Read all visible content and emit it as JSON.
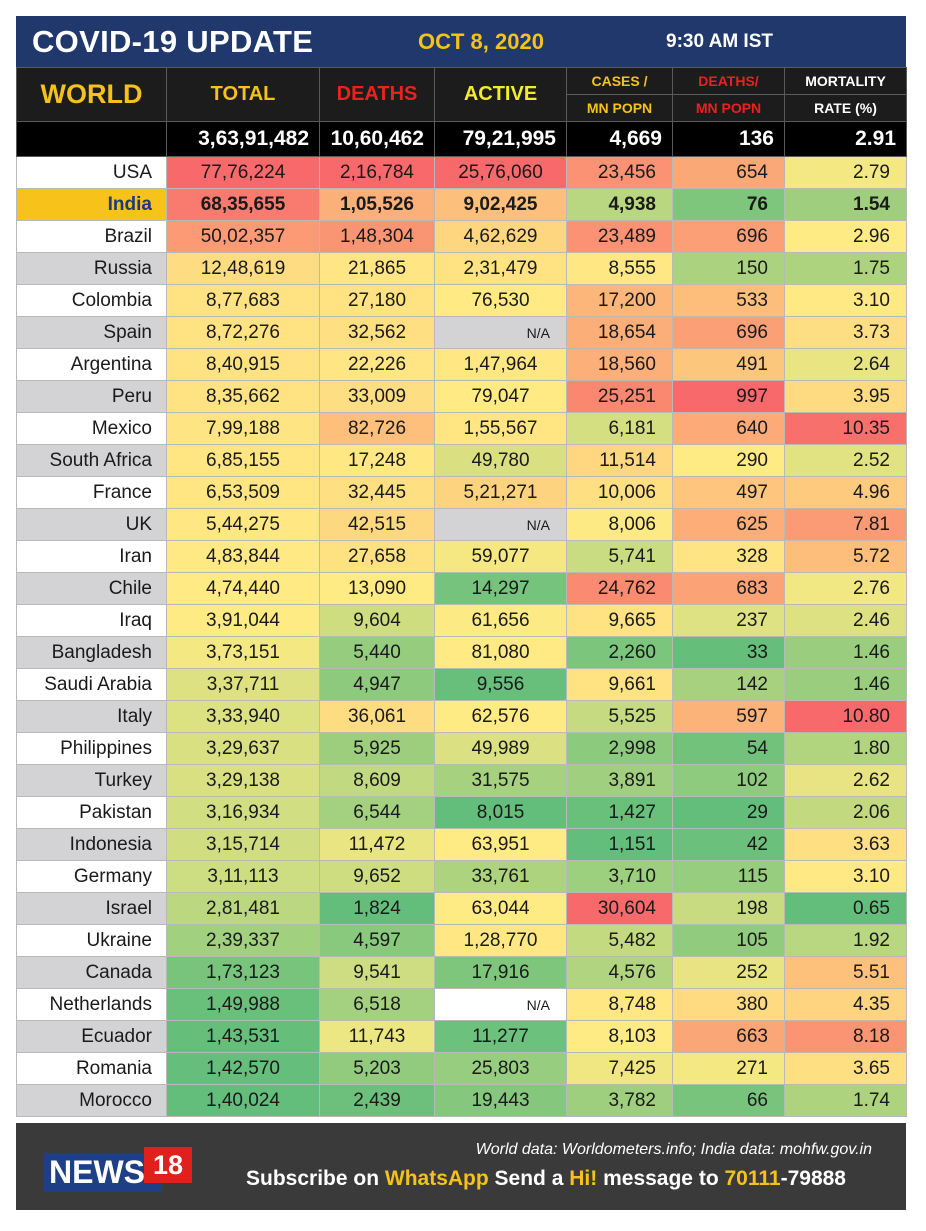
{
  "header": {
    "title": "COVID-19 UPDATE",
    "date": "OCT 8, 2020",
    "time": "9:30 AM IST"
  },
  "columns": {
    "region": "WORLD",
    "total": "TOTAL",
    "deaths": "DEATHS",
    "active": "ACTIVE",
    "cases_mn_1": "CASES /",
    "cases_mn_2": "MN POPN",
    "deaths_mn_1": "DEATHS/",
    "deaths_mn_2": "MN POPN",
    "mortality_1": "MORTALITY",
    "mortality_2": "RATE (%)"
  },
  "world_totals": [
    "3,63,91,482",
    "10,60,462",
    "79,21,995",
    "4,669",
    "136",
    "2.91"
  ],
  "rows": [
    {
      "country": "USA",
      "values": [
        "77,76,224",
        "2,16,784",
        "25,76,060",
        "23,456",
        "654",
        "2.79"
      ]
    },
    {
      "country": "India",
      "values": [
        "68,35,655",
        "1,05,526",
        "9,02,425",
        "4,938",
        "76",
        "1.54"
      ]
    },
    {
      "country": "Brazil",
      "values": [
        "50,02,357",
        "1,48,304",
        "4,62,629",
        "23,489",
        "696",
        "2.96"
      ]
    },
    {
      "country": "Russia",
      "values": [
        "12,48,619",
        "21,865",
        "2,31,479",
        "8,555",
        "150",
        "1.75"
      ]
    },
    {
      "country": "Colombia",
      "values": [
        "8,77,683",
        "27,180",
        "76,530",
        "17,200",
        "533",
        "3.10"
      ]
    },
    {
      "country": "Spain",
      "values": [
        "8,72,276",
        "32,562",
        "N/A",
        "18,654",
        "696",
        "3.73"
      ]
    },
    {
      "country": "Argentina",
      "values": [
        "8,40,915",
        "22,226",
        "1,47,964",
        "18,560",
        "491",
        "2.64"
      ]
    },
    {
      "country": "Peru",
      "values": [
        "8,35,662",
        "33,009",
        "79,047",
        "25,251",
        "997",
        "3.95"
      ]
    },
    {
      "country": "Mexico",
      "values": [
        "7,99,188",
        "82,726",
        "1,55,567",
        "6,181",
        "640",
        "10.35"
      ]
    },
    {
      "country": "South Africa",
      "values": [
        "6,85,155",
        "17,248",
        "49,780",
        "11,514",
        "290",
        "2.52"
      ]
    },
    {
      "country": "France",
      "values": [
        "6,53,509",
        "32,445",
        "5,21,271",
        "10,006",
        "497",
        "4.96"
      ]
    },
    {
      "country": "UK",
      "values": [
        "5,44,275",
        "42,515",
        "N/A",
        "8,006",
        "625",
        "7.81"
      ]
    },
    {
      "country": "Iran",
      "values": [
        "4,83,844",
        "27,658",
        "59,077",
        "5,741",
        "328",
        "5.72"
      ]
    },
    {
      "country": "Chile",
      "values": [
        "4,74,440",
        "13,090",
        "14,297",
        "24,762",
        "683",
        "2.76"
      ]
    },
    {
      "country": "Iraq",
      "values": [
        "3,91,044",
        "9,604",
        "61,656",
        "9,665",
        "237",
        "2.46"
      ]
    },
    {
      "country": "Bangladesh",
      "values": [
        "3,73,151",
        "5,440",
        "81,080",
        "2,260",
        "33",
        "1.46"
      ]
    },
    {
      "country": "Saudi Arabia",
      "values": [
        "3,37,711",
        "4,947",
        "9,556",
        "9,661",
        "142",
        "1.46"
      ]
    },
    {
      "country": "Italy",
      "values": [
        "3,33,940",
        "36,061",
        "62,576",
        "5,525",
        "597",
        "10.80"
      ]
    },
    {
      "country": "Philippines",
      "values": [
        "3,29,637",
        "5,925",
        "49,989",
        "2,998",
        "54",
        "1.80"
      ]
    },
    {
      "country": "Turkey",
      "values": [
        "3,29,138",
        "8,609",
        "31,575",
        "3,891",
        "102",
        "2.62"
      ]
    },
    {
      "country": "Pakistan",
      "values": [
        "3,16,934",
        "6,544",
        "8,015",
        "1,427",
        "29",
        "2.06"
      ]
    },
    {
      "country": "Indonesia",
      "values": [
        "3,15,714",
        "11,472",
        "63,951",
        "1,151",
        "42",
        "3.63"
      ]
    },
    {
      "country": "Germany",
      "values": [
        "3,11,113",
        "9,652",
        "33,761",
        "3,710",
        "115",
        "3.10"
      ]
    },
    {
      "country": "Israel",
      "values": [
        "2,81,481",
        "1,824",
        "63,044",
        "30,604",
        "198",
        "0.65"
      ]
    },
    {
      "country": "Ukraine",
      "values": [
        "2,39,337",
        "4,597",
        "1,28,770",
        "5,482",
        "105",
        "1.92"
      ]
    },
    {
      "country": "Canada",
      "values": [
        "1,73,123",
        "9,541",
        "17,916",
        "4,576",
        "252",
        "5.51"
      ]
    },
    {
      "country": "Netherlands",
      "values": [
        "1,49,988",
        "6,518",
        "N/A",
        "8,748",
        "380",
        "4.35"
      ]
    },
    {
      "country": "Ecuador",
      "values": [
        "1,43,531",
        "11,743",
        "11,277",
        "8,103",
        "663",
        "8.18"
      ]
    },
    {
      "country": "Romania",
      "values": [
        "1,42,570",
        "5,203",
        "25,803",
        "7,425",
        "271",
        "3.65"
      ]
    },
    {
      "country": "Morocco",
      "values": [
        "1,40,024",
        "2,439",
        "19,443",
        "3,782",
        "66",
        "1.74"
      ]
    }
  ],
  "colors": {
    "banner": "#20386b",
    "accent_yellow": "#f5c21b",
    "highlight_row": "#f7c21a",
    "heat_low": "#63be7b",
    "heat_mid": "#ffeb84",
    "heat_high": "#f8696b"
  },
  "footer": {
    "source": "World data: Worldometers.info; India data: mohfw.gov.in",
    "logo_news": "NEWS",
    "logo_18": "18",
    "sub_1": "Subscribe on",
    "sub_whatsapp": "WhatsApp",
    "sub_2": "Send a",
    "sub_hi": "Hi!",
    "sub_3": "message to",
    "sub_num_1": "70111",
    "sub_num_2": "-79888"
  }
}
